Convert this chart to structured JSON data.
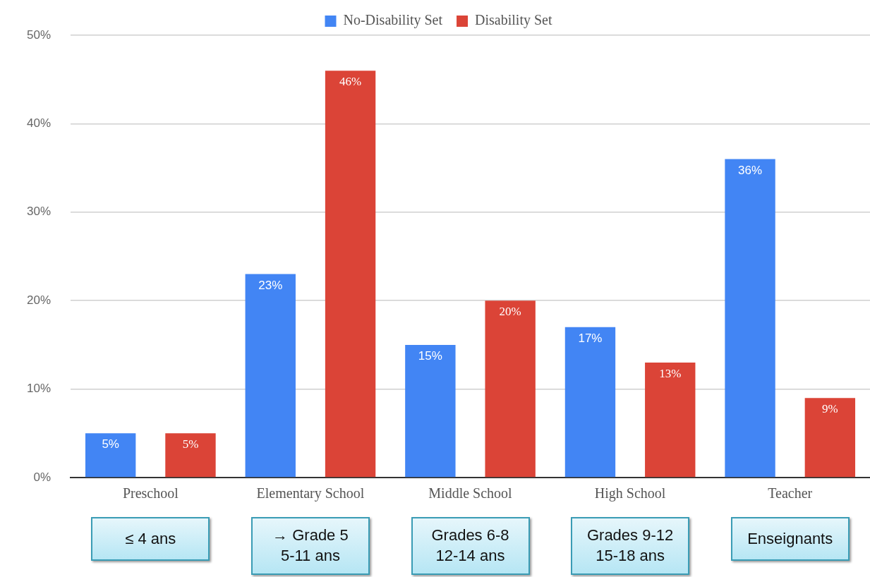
{
  "chart_data": {
    "type": "bar",
    "categories": [
      "Preschool",
      "Elementary School",
      "Middle School",
      "High School",
      "Teacher"
    ],
    "series": [
      {
        "name": "No-Disability Set",
        "color": "#4285f4",
        "values": [
          5,
          23,
          15,
          17,
          36
        ],
        "value_labels": [
          "5%",
          "23%",
          "15%",
          "17%",
          "36%"
        ]
      },
      {
        "name": "Disability Set",
        "color": "#db4437",
        "values": [
          5,
          46,
          20,
          13,
          9
        ],
        "value_labels": [
          "5%",
          "46%",
          "20%",
          "13%",
          "9%"
        ]
      }
    ],
    "ylim": [
      0,
      50
    ],
    "yticks": [
      {
        "value": 0,
        "label": "0%"
      },
      {
        "value": 10,
        "label": "10%"
      },
      {
        "value": 20,
        "label": "20%"
      },
      {
        "value": 30,
        "label": "30%"
      },
      {
        "value": 40,
        "label": "40%"
      },
      {
        "value": 50,
        "label": "50%"
      }
    ],
    "grid": "y",
    "legend": "top",
    "annotations": [
      "≤ 4 ans",
      "→ Grade 5\n5-11 ans",
      "Grades 6-8\n12-14 ans",
      "Grades 9-12\n15-18 ans",
      "Enseignants"
    ]
  }
}
